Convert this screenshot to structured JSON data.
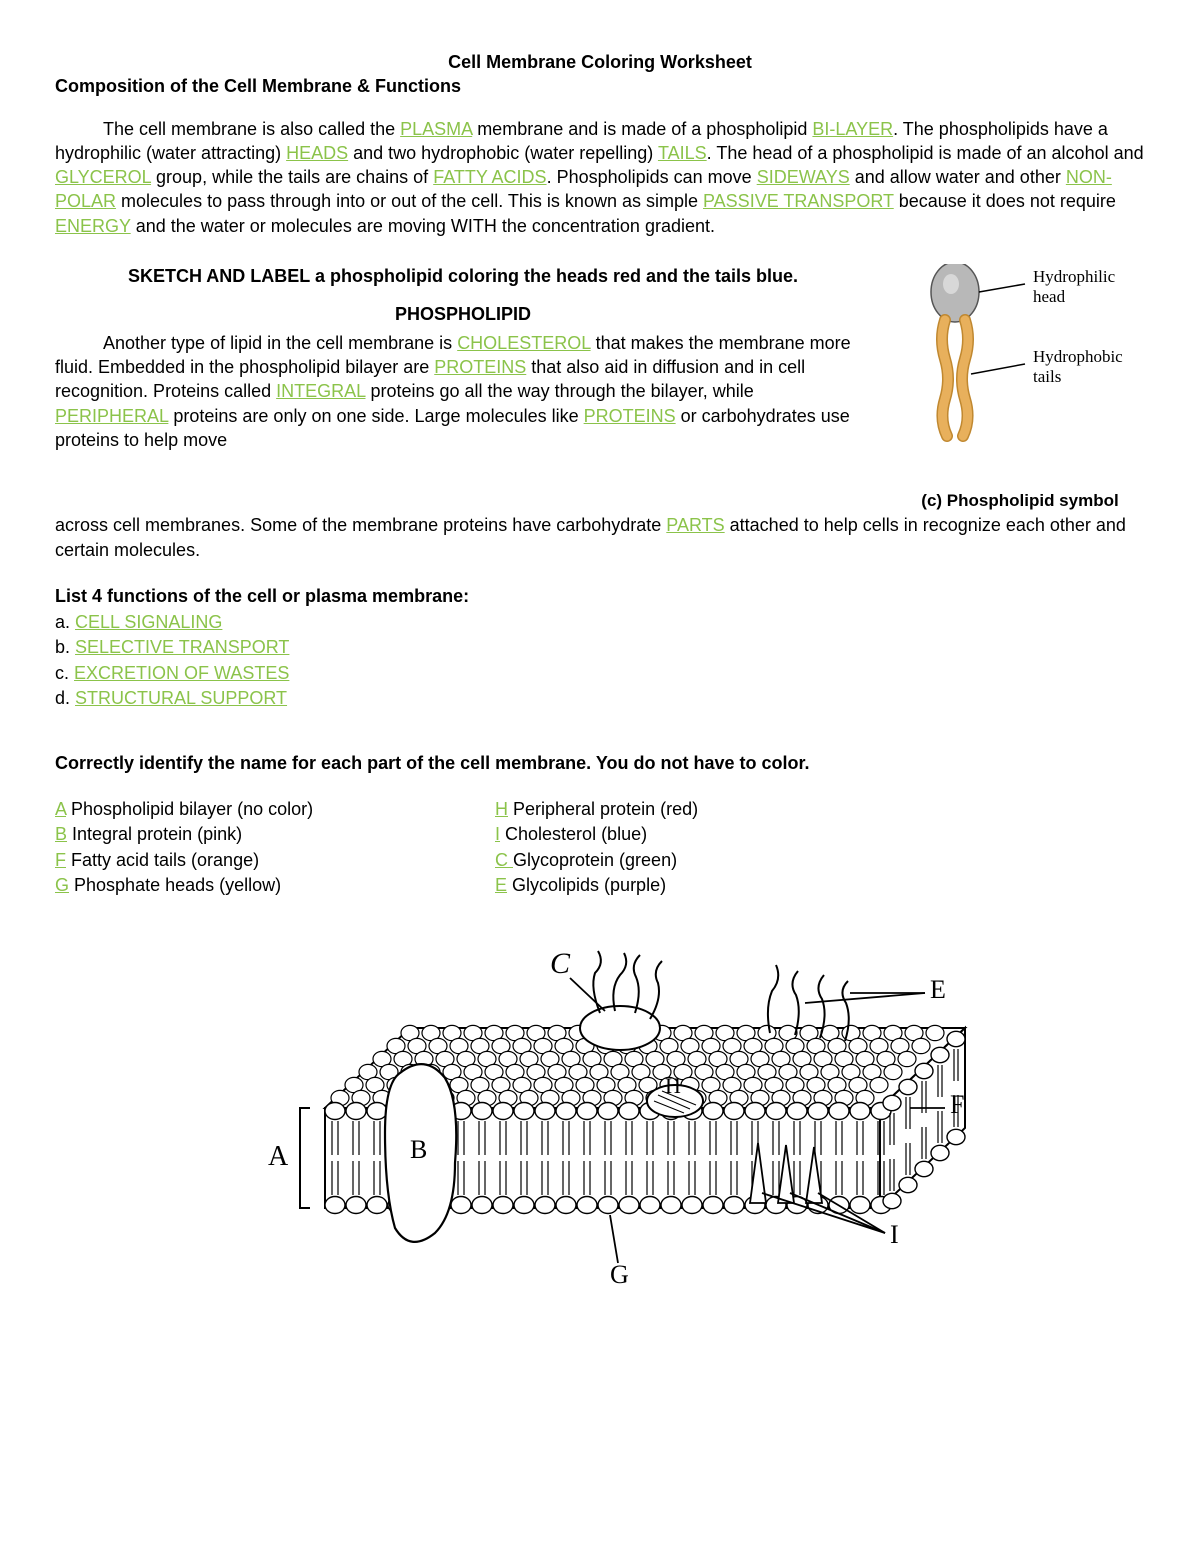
{
  "title": "Cell Membrane Coloring Worksheet",
  "subtitle": "Composition of the Cell Membrane & Functions",
  "p1": {
    "t1": "The cell membrane is also called the ",
    "a1": "PLASMA",
    "t2": " membrane and is made of a phospholipid ",
    "a2": "BI-LAYER",
    "t3": ". The phospholipids have a hydrophilic (water attracting) ",
    "a3": "HEADS",
    "t4": " and two hydrophobic (water repelling) ",
    "a4": "TAILS",
    "t5": ". The head of a phospholipid is made of an alcohol and ",
    "a5": "GLYCEROL",
    "t6": " group, while the tails are chains of ",
    "a6": "FATTY ACIDS",
    "t7": ". Phospholipids can move ",
    "a7": "SIDEWAYS",
    "t8": " and allow water and other ",
    "a8": "NON-POLAR",
    "t9": " molecules to pass through into or out of the cell. This is known as simple ",
    "a9": "PASSIVE TRANSPORT",
    "t10": " because it does not require ",
    "a10": "ENERGY",
    "t11": " and the water or molecules are moving WITH the concentration gradient."
  },
  "sketch_heading": "SKETCH AND LABEL a phospholipid coloring the heads red and the tails blue.",
  "phospho_heading": "PHOSPHOLIPID",
  "p2": {
    "t1": "Another type of lipid in the cell membrane is ",
    "a1": "CHOLESTEROL",
    "t2": " that makes the membrane more fluid. Embedded in the phospholipid bilayer are ",
    "a2": "PROTEINS",
    "t3": " that also aid in diffusion and in cell recognition. Proteins called ",
    "a3": "INTEGRAL",
    "t4": " proteins go all the way through the bilayer, while ",
    "a4": "PERIPHERAL",
    "t5": " proteins are only on one side. Large molecules like ",
    "a5": "PROTEINS",
    "t6": " or carbohydrates use proteins to help move"
  },
  "p2b": {
    "t1": "across cell membranes. Some of the membrane proteins have carbohydrate ",
    "a1": "PARTS",
    "t2": " attached to help cells in recognize each other and certain molecules."
  },
  "list_heading": "List 4 functions of the cell or plasma membrane:",
  "functions": {
    "a": {
      "prefix": "a. ",
      "ans": "CELL SIGNALING"
    },
    "b": {
      "prefix": "b. ",
      "ans": "SELECTIVE TRANSPORT"
    },
    "c": {
      "prefix": "c. ",
      "ans": "EXCRETION OF WASTES"
    },
    "d": {
      "prefix": "d. ",
      "ans": "STRUCTURAL SUPPORT"
    }
  },
  "identify_heading": "Correctly identify the name for each part of the cell membrane. You do not have to color.",
  "parts_left": {
    "r1": {
      "letter": "A",
      "text": " Phospholipid bilayer (no color)"
    },
    "r2": {
      "letter": "B",
      "text": " Integral protein (pink)"
    },
    "r3": {
      "letter": "F",
      "text": " Fatty acid tails (orange)"
    },
    "r4": {
      "letter": "G",
      "text": " Phosphate heads (yellow)"
    }
  },
  "parts_right": {
    "r1": {
      "letter": "H",
      "text": "  Peripheral protein (red)"
    },
    "r2": {
      "letter": "I",
      "text": "  Cholesterol (blue)"
    },
    "r3": {
      "letter": "C ",
      "text": " Glycoprotein (green)"
    },
    "r4": {
      "letter": "E",
      "text": "  Glycolipids (purple)"
    }
  },
  "phospholipid_diagram": {
    "head_label": "Hydrophilic head",
    "tail_label": "Hydrophobic tails",
    "caption": "(c) Phospholipid symbol",
    "head_fill": "#b8b8b8",
    "head_stroke": "#555",
    "tail_fill": "#e8b05c",
    "tail_stroke": "#c08830"
  },
  "membrane_diagram": {
    "labels": {
      "A": "A",
      "B": "B",
      "C": "C",
      "E": "E",
      "F": "F",
      "G": "G",
      "H": "H",
      "I": "I"
    }
  }
}
